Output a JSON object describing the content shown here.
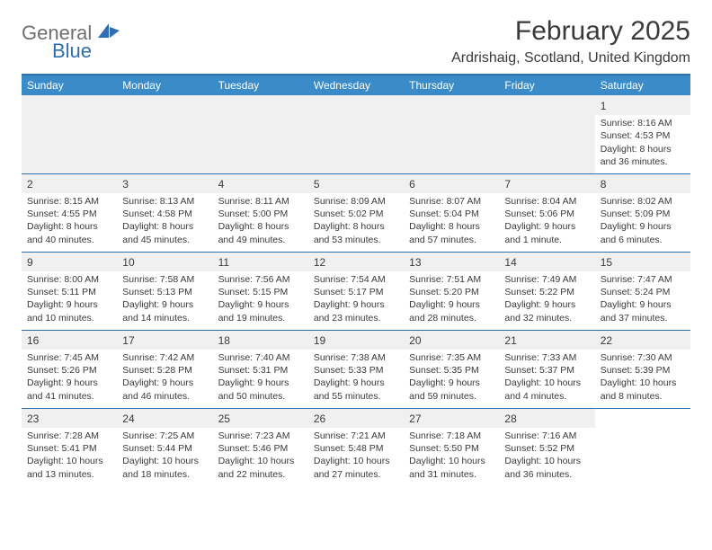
{
  "branding": {
    "name_part1": "General",
    "name_part2": "Blue",
    "text_color_1": "#6f6f6f",
    "text_color_2": "#2f6fb0",
    "shape_color": "#2f6fb0"
  },
  "title": "February 2025",
  "location": "Ardrishaig, Scotland, United Kingdom",
  "colors": {
    "header_bg": "#3b8bc9",
    "header_text": "#ffffff",
    "divider": "#2f6fb0",
    "body_text": "#3a3a3a",
    "page_bg": "#ffffff",
    "empty_bg": "#f0f0f0"
  },
  "typography": {
    "title_fontsize": 30,
    "location_fontsize": 16,
    "weekday_fontsize": 12,
    "daynum_fontsize": 12,
    "body_fontsize": 10.5
  },
  "weekdays": [
    "Sunday",
    "Monday",
    "Tuesday",
    "Wednesday",
    "Thursday",
    "Friday",
    "Saturday"
  ],
  "weeks": [
    [
      null,
      null,
      null,
      null,
      null,
      null,
      {
        "d": "1",
        "sunrise": "8:16 AM",
        "sunset": "4:53 PM",
        "daylight": "8 hours and 36 minutes."
      }
    ],
    [
      {
        "d": "2",
        "sunrise": "8:15 AM",
        "sunset": "4:55 PM",
        "daylight": "8 hours and 40 minutes."
      },
      {
        "d": "3",
        "sunrise": "8:13 AM",
        "sunset": "4:58 PM",
        "daylight": "8 hours and 45 minutes."
      },
      {
        "d": "4",
        "sunrise": "8:11 AM",
        "sunset": "5:00 PM",
        "daylight": "8 hours and 49 minutes."
      },
      {
        "d": "5",
        "sunrise": "8:09 AM",
        "sunset": "5:02 PM",
        "daylight": "8 hours and 53 minutes."
      },
      {
        "d": "6",
        "sunrise": "8:07 AM",
        "sunset": "5:04 PM",
        "daylight": "8 hours and 57 minutes."
      },
      {
        "d": "7",
        "sunrise": "8:04 AM",
        "sunset": "5:06 PM",
        "daylight": "9 hours and 1 minute."
      },
      {
        "d": "8",
        "sunrise": "8:02 AM",
        "sunset": "5:09 PM",
        "daylight": "9 hours and 6 minutes."
      }
    ],
    [
      {
        "d": "9",
        "sunrise": "8:00 AM",
        "sunset": "5:11 PM",
        "daylight": "9 hours and 10 minutes."
      },
      {
        "d": "10",
        "sunrise": "7:58 AM",
        "sunset": "5:13 PM",
        "daylight": "9 hours and 14 minutes."
      },
      {
        "d": "11",
        "sunrise": "7:56 AM",
        "sunset": "5:15 PM",
        "daylight": "9 hours and 19 minutes."
      },
      {
        "d": "12",
        "sunrise": "7:54 AM",
        "sunset": "5:17 PM",
        "daylight": "9 hours and 23 minutes."
      },
      {
        "d": "13",
        "sunrise": "7:51 AM",
        "sunset": "5:20 PM",
        "daylight": "9 hours and 28 minutes."
      },
      {
        "d": "14",
        "sunrise": "7:49 AM",
        "sunset": "5:22 PM",
        "daylight": "9 hours and 32 minutes."
      },
      {
        "d": "15",
        "sunrise": "7:47 AM",
        "sunset": "5:24 PM",
        "daylight": "9 hours and 37 minutes."
      }
    ],
    [
      {
        "d": "16",
        "sunrise": "7:45 AM",
        "sunset": "5:26 PM",
        "daylight": "9 hours and 41 minutes."
      },
      {
        "d": "17",
        "sunrise": "7:42 AM",
        "sunset": "5:28 PM",
        "daylight": "9 hours and 46 minutes."
      },
      {
        "d": "18",
        "sunrise": "7:40 AM",
        "sunset": "5:31 PM",
        "daylight": "9 hours and 50 minutes."
      },
      {
        "d": "19",
        "sunrise": "7:38 AM",
        "sunset": "5:33 PM",
        "daylight": "9 hours and 55 minutes."
      },
      {
        "d": "20",
        "sunrise": "7:35 AM",
        "sunset": "5:35 PM",
        "daylight": "9 hours and 59 minutes."
      },
      {
        "d": "21",
        "sunrise": "7:33 AM",
        "sunset": "5:37 PM",
        "daylight": "10 hours and 4 minutes."
      },
      {
        "d": "22",
        "sunrise": "7:30 AM",
        "sunset": "5:39 PM",
        "daylight": "10 hours and 8 minutes."
      }
    ],
    [
      {
        "d": "23",
        "sunrise": "7:28 AM",
        "sunset": "5:41 PM",
        "daylight": "10 hours and 13 minutes."
      },
      {
        "d": "24",
        "sunrise": "7:25 AM",
        "sunset": "5:44 PM",
        "daylight": "10 hours and 18 minutes."
      },
      {
        "d": "25",
        "sunrise": "7:23 AM",
        "sunset": "5:46 PM",
        "daylight": "10 hours and 22 minutes."
      },
      {
        "d": "26",
        "sunrise": "7:21 AM",
        "sunset": "5:48 PM",
        "daylight": "10 hours and 27 minutes."
      },
      {
        "d": "27",
        "sunrise": "7:18 AM",
        "sunset": "5:50 PM",
        "daylight": "10 hours and 31 minutes."
      },
      {
        "d": "28",
        "sunrise": "7:16 AM",
        "sunset": "5:52 PM",
        "daylight": "10 hours and 36 minutes."
      },
      null
    ]
  ],
  "labels": {
    "sunrise": "Sunrise:",
    "sunset": "Sunset:",
    "daylight": "Daylight:"
  }
}
